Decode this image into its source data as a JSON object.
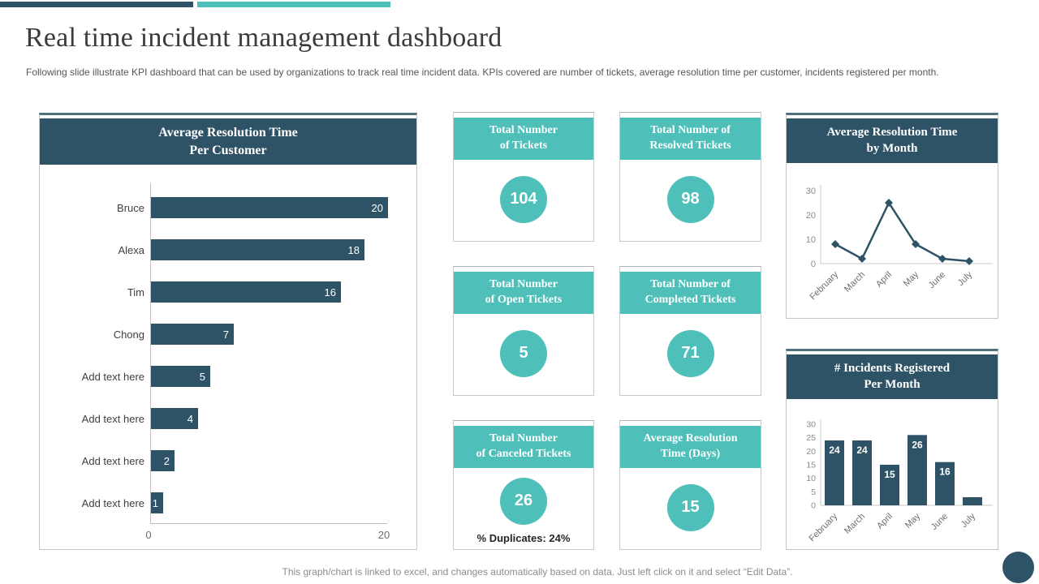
{
  "page": {
    "title": "Real time incident management dashboard",
    "subtitle": "Following slide illustrate KPI dashboard that can be used by organizations to track real time incident data. KPIs covered are number of tickets, average resolution time per customer, incidents registered per month.",
    "footer": "This graph/chart is linked to excel, and changes automatically based on data. Just left click on it and select “Edit Data”."
  },
  "colors": {
    "navy": "#2F5366",
    "teal": "#4EC0B9"
  },
  "panels": {
    "customer": {
      "header": [
        "Average Resolution Time",
        "Per Customer"
      ]
    },
    "month_line": {
      "header": [
        "Average Resolution Time",
        "by Month"
      ]
    },
    "month_bar": {
      "header": [
        "# Incidents Registered",
        "Per Month"
      ]
    }
  },
  "kpi_cards": [
    {
      "title": [
        "Total Number",
        "of Tickets"
      ],
      "value": "104"
    },
    {
      "title": [
        "Total Number of",
        "Resolved Tickets"
      ],
      "value": "98"
    },
    {
      "title": [
        "Total Number",
        "of Open Tickets"
      ],
      "value": "5"
    },
    {
      "title": [
        "Total Number of",
        "Completed Tickets"
      ],
      "value": "71"
    },
    {
      "title": [
        "Total Number",
        "of Canceled Tickets"
      ],
      "value": "26",
      "note_label": "% Duplicates:",
      "note_value": "24%"
    },
    {
      "title": [
        "Average Resolution",
        "Time (Days)"
      ],
      "value": "15"
    }
  ],
  "chart_data": [
    {
      "id": "avg-resolution-per-customer",
      "type": "bar",
      "orientation": "horizontal",
      "title": "Average Resolution Time Per Customer",
      "categories": [
        "Bruce",
        "Alexa",
        "Tim",
        "Chong",
        "Add text here",
        "Add text here",
        "Add text here",
        "Add text here"
      ],
      "values": [
        20,
        18,
        16,
        7,
        5,
        4,
        2,
        1
      ],
      "xlim": [
        0,
        20
      ],
      "x_ticks": [
        0,
        20
      ],
      "value_labels": true,
      "grid": false
    },
    {
      "id": "avg-resolution-by-month",
      "type": "line",
      "title": "Average Resolution Time by Month",
      "categories": [
        "February",
        "March",
        "April",
        "May",
        "June",
        "July"
      ],
      "values": [
        8,
        2,
        25,
        8,
        2,
        1
      ],
      "ylim": [
        0,
        30
      ],
      "y_ticks": [
        0,
        10,
        20,
        30
      ],
      "marker": "diamond",
      "grid": false
    },
    {
      "id": "incidents-registered-per-month",
      "type": "bar",
      "orientation": "vertical",
      "title": "# Incidents Registered Per Month",
      "categories": [
        "February",
        "March",
        "April",
        "May",
        "June",
        "July"
      ],
      "values": [
        24,
        24,
        15,
        26,
        16,
        3
      ],
      "ylim": [
        0,
        30
      ],
      "y_ticks": [
        0,
        5,
        10,
        15,
        20,
        25,
        30
      ],
      "value_labels": [
        24,
        24,
        15,
        26,
        16,
        null
      ],
      "grid": false
    }
  ]
}
